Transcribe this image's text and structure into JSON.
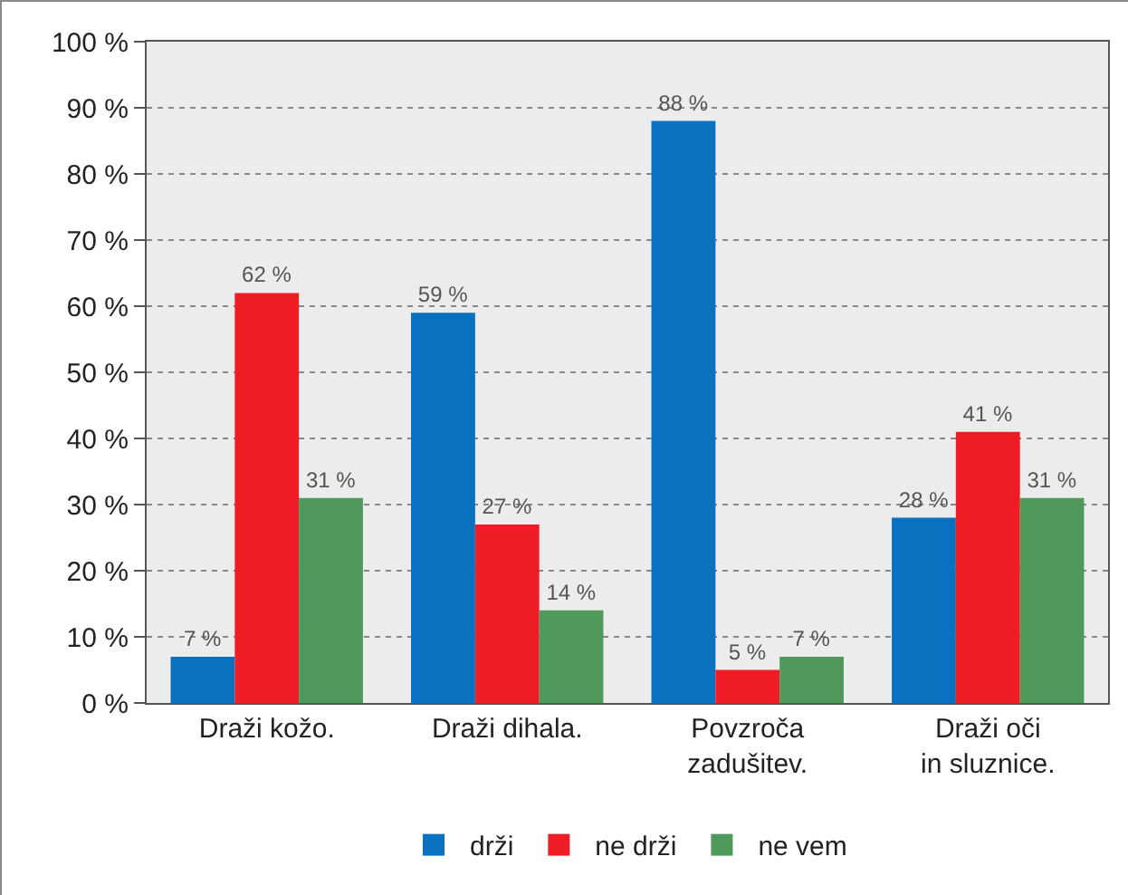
{
  "chart_data": {
    "type": "bar",
    "categories": [
      "Draži kožo.",
      "Draži dihala.",
      "Povzroča\nzadušitev.",
      "Draži oči\nin sluznice."
    ],
    "series": [
      {
        "name": "drži",
        "color": "#0a70c0",
        "values": [
          7,
          59,
          88,
          28
        ],
        "value_labels": [
          "7 %",
          "59 %",
          "88 %",
          "28 %"
        ]
      },
      {
        "name": "ne drži",
        "color": "#ee1c25",
        "values": [
          62,
          27,
          5,
          41
        ],
        "value_labels": [
          "62 %",
          "27 %",
          "5 %",
          "41 %"
        ]
      },
      {
        "name": "ne vem",
        "color": "#4f9a5a",
        "values": [
          31,
          14,
          7,
          31
        ],
        "value_labels": [
          "31 %",
          "14 %",
          "7 %",
          "31 %"
        ]
      }
    ],
    "ylim": [
      0,
      100
    ],
    "yticks": [
      {
        "value": 0,
        "label": "0 %"
      },
      {
        "value": 10,
        "label": "10 %"
      },
      {
        "value": 20,
        "label": "20 %"
      },
      {
        "value": 30,
        "label": "30 %"
      },
      {
        "value": 40,
        "label": "40 %"
      },
      {
        "value": 50,
        "label": "50 %"
      },
      {
        "value": 60,
        "label": "60 %"
      },
      {
        "value": 70,
        "label": "70 %"
      },
      {
        "value": 80,
        "label": "80 %"
      },
      {
        "value": 90,
        "label": "90 %"
      },
      {
        "value": 100,
        "label": "100 %"
      }
    ],
    "grid": "y",
    "legend": "bottom"
  }
}
